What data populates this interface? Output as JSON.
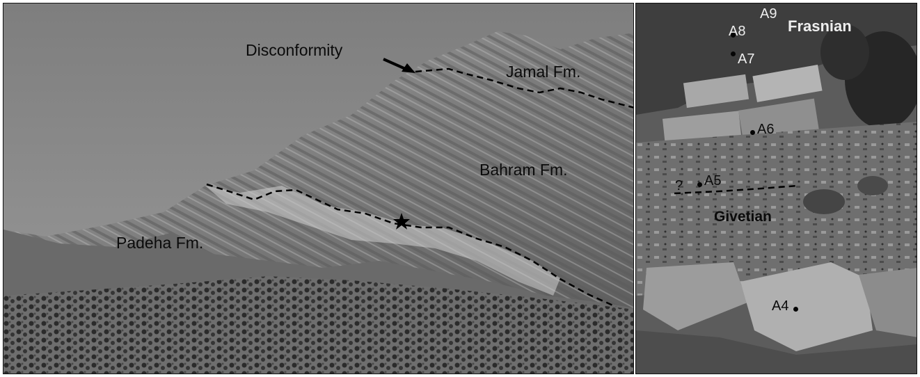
{
  "photo_left": {
    "labels": {
      "disconformity": "Disconformity",
      "jamal": "Jamal Fm.",
      "bahram": "Bahram Fm.",
      "padeha": "Padeha Fm."
    },
    "marker_icon": "star-icon"
  },
  "photo_right": {
    "labels": {
      "frasnian": "Frasnian",
      "givetian": "Givetian",
      "boundary_query": "?"
    },
    "samples": [
      "A4",
      "A5",
      "A6",
      "A7",
      "A8",
      "A9"
    ]
  }
}
